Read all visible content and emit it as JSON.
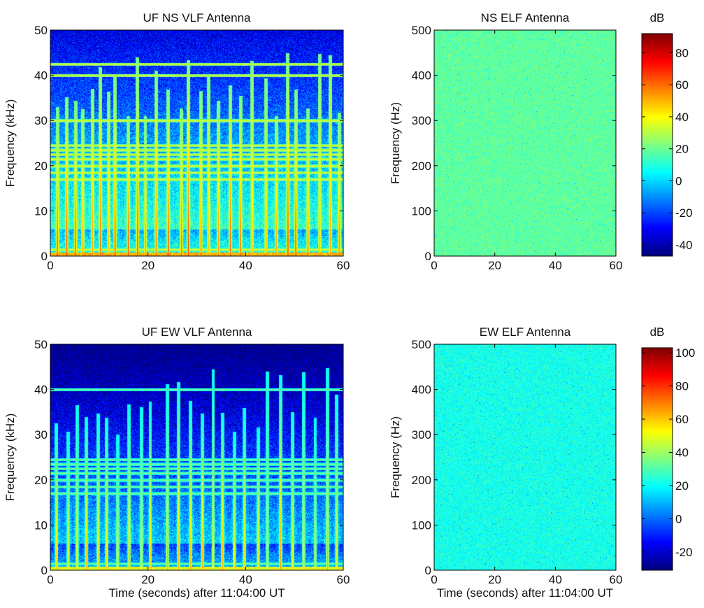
{
  "chart_data": [
    {
      "id": "ns-vlf",
      "type": "heatmap",
      "title": "UF NS VLF Antenna",
      "xlabel": "",
      "ylabel": "Frequency (kHz)",
      "xlim": [
        0,
        60
      ],
      "ylim": [
        0,
        50
      ],
      "xticks": [
        0,
        20,
        40,
        60
      ],
      "yticks": [
        0,
        10,
        20,
        30,
        40,
        50
      ],
      "lines_khz": [
        0.5,
        1.5,
        17,
        18.5,
        20,
        21.5,
        22.5,
        23.5,
        24.5,
        30,
        40,
        42.5
      ],
      "spikes_s": [
        1.4,
        3.3,
        5.1,
        6.6,
        8.6,
        10.2,
        11.9,
        13.2,
        15.9,
        17.8,
        19.4,
        21.6,
        24.1,
        26.8,
        28.2,
        30.8,
        32.4,
        34.4,
        36.8,
        38.9,
        41.3,
        44.1,
        46.2,
        48.6,
        50.2,
        52.7,
        55.1,
        57.3,
        59.1
      ],
      "colorbar": "ns"
    },
    {
      "id": "ns-elf",
      "type": "heatmap",
      "title": "NS ELF Antenna",
      "xlabel": "",
      "ylabel": "Frequency (Hz)",
      "xlim": [
        0,
        60
      ],
      "ylim": [
        0,
        500
      ],
      "xticks": [
        0,
        20,
        40,
        60
      ],
      "yticks": [
        0,
        100,
        200,
        300,
        400,
        500
      ],
      "base_level_db": 18,
      "colorbar": "ns"
    },
    {
      "id": "ew-vlf",
      "type": "heatmap",
      "title": "UF EW VLF Antenna",
      "xlabel": "Time (seconds) after 11:04:00 UT",
      "ylabel": "Frequency (kHz)",
      "xlim": [
        0,
        60
      ],
      "ylim": [
        0,
        50
      ],
      "xticks": [
        0,
        20,
        40,
        60
      ],
      "yticks": [
        0,
        10,
        20,
        30,
        40,
        50
      ],
      "lines_khz": [
        0.5,
        1.5,
        17,
        18.5,
        20,
        21.5,
        22.5,
        23.5,
        24.5,
        40
      ],
      "spikes_s": [
        1.2,
        3.6,
        5.4,
        7.3,
        9.7,
        11.5,
        13.7,
        16.1,
        18.6,
        20.4,
        23.9,
        26.2,
        28.7,
        31.1,
        33.3,
        35.2,
        37.6,
        39.7,
        42.5,
        44.4,
        47.1,
        49.6,
        51.8,
        54.2,
        56.7,
        58.6
      ],
      "colorbar": "ew"
    },
    {
      "id": "ew-elf",
      "type": "heatmap",
      "title": "EW ELF Antenna",
      "xlabel": "Time (seconds) after 11:04:00 UT",
      "ylabel": "Frequency (Hz)",
      "xlim": [
        0,
        60
      ],
      "ylim": [
        0,
        500
      ],
      "xticks": [
        0,
        20,
        40,
        60
      ],
      "yticks": [
        0,
        100,
        200,
        300,
        400,
        500
      ],
      "base_level_db": 22,
      "colorbar": "ew"
    }
  ],
  "colorbars": {
    "ns": {
      "label": "dB",
      "range": [
        -47,
        92
      ],
      "ticks": [
        -40,
        -20,
        0,
        20,
        40,
        60,
        80
      ]
    },
    "ew": {
      "label": "dB",
      "range": [
        -31,
        103
      ],
      "ticks": [
        -20,
        0,
        20,
        40,
        60,
        80,
        100
      ]
    }
  },
  "colormap": "jet"
}
